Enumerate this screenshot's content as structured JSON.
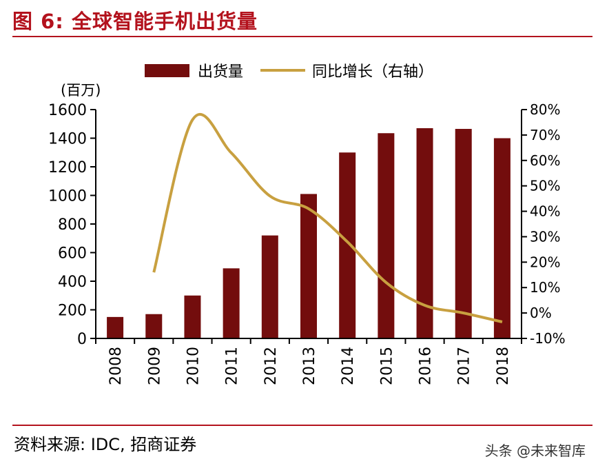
{
  "header": {
    "title": "图 6:  全球智能手机出货量"
  },
  "footer": {
    "source": "资料来源:  IDC,  招商证券",
    "watermark": "头条 @未来智库"
  },
  "colors": {
    "accent": "#b3121d",
    "bar": "#730d0d",
    "line": "#c8a040"
  },
  "chart_data": {
    "type": "bar",
    "categories": [
      "2008",
      "2009",
      "2010",
      "2011",
      "2012",
      "2013",
      "2014",
      "2015",
      "2016",
      "2017",
      "2018"
    ],
    "series": [
      {
        "name": "出货量",
        "type": "bar",
        "axis": "left",
        "values": [
          150,
          170,
          300,
          490,
          720,
          1010,
          1300,
          1435,
          1470,
          1465,
          1400
        ]
      },
      {
        "name": "同比增长（右轴）",
        "type": "line",
        "axis": "right",
        "values": [
          null,
          16,
          76,
          63,
          46,
          41,
          28,
          12,
          3,
          0,
          -3.5
        ]
      }
    ],
    "y_left": {
      "unit": "(百万)",
      "ylim": [
        0,
        1600
      ],
      "ticks": [
        "0",
        "200",
        "400",
        "600",
        "800",
        "1000",
        "1200",
        "1400",
        "1600"
      ]
    },
    "y_right": {
      "ylim": [
        -10,
        80
      ],
      "ticks": [
        "-10%",
        "0%",
        "10%",
        "20%",
        "30%",
        "40%",
        "50%",
        "60%",
        "70%",
        "80%"
      ]
    },
    "legend_position": "top-center",
    "grid": false
  }
}
